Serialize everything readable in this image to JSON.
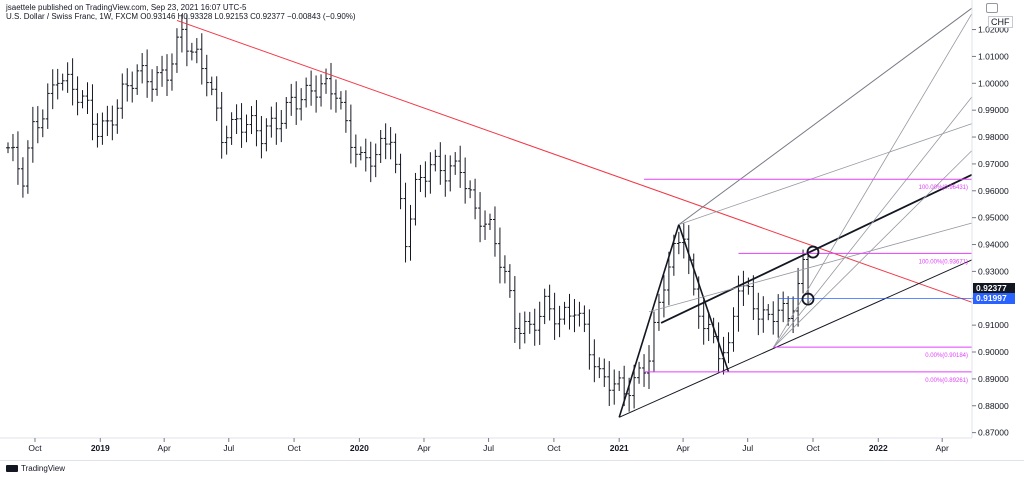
{
  "header": {
    "text": "jsaettele published on TradingView.com, Sep 23, 2021 16:07 UTC-5",
    "symbol": "U.S. Dollar / Swiss Franc, 1W, FXCM",
    "ohlc": "O0.93146  H0.93328  L0.92153  C0.92377  −0.00843 (−0.90%)"
  },
  "axis": {
    "currency": "CHF",
    "settings_icon": "gear-icon"
  },
  "footer": {
    "brand": "TradingView",
    "logo_icon": "tradingview-logo-icon"
  },
  "price_tags": [
    {
      "label": "0.92377",
      "value": 0.92377,
      "color": "#131722"
    },
    {
      "label": "0.91997",
      "value": 0.91997,
      "color": "#2962ff"
    }
  ],
  "chart_data": {
    "type": "bar",
    "subtype": "ohlc-weekly",
    "title": "U.S. Dollar / Swiss Franc, 1W, FXCM",
    "ylim": [
      0.868,
      1.031
    ],
    "yticks": [
      0.87,
      0.88,
      0.89,
      0.9,
      0.91,
      0.92,
      0.93,
      0.94,
      0.95,
      0.96,
      0.97,
      0.98,
      0.99,
      1.0,
      1.01,
      1.02
    ],
    "ytick_labels": [
      "0.87000",
      "0.88000",
      "0.89000",
      "0.90000",
      "0.91000",
      "0.92000",
      "0.93000",
      "0.94000",
      "0.95000",
      "0.96000",
      "0.97000",
      "0.98000",
      "0.99000",
      "1.00000",
      "1.01000",
      "1.02000"
    ],
    "xlim": [
      "2018-08-24",
      "2022-05-13"
    ],
    "xticks": [
      {
        "date": "2018-10-01",
        "label": "Oct"
      },
      {
        "date": "2019-01-01",
        "label": "2019"
      },
      {
        "date": "2019-04-01",
        "label": "Apr"
      },
      {
        "date": "2019-07-01",
        "label": "Jul"
      },
      {
        "date": "2019-10-01",
        "label": "Oct"
      },
      {
        "date": "2020-01-01",
        "label": "2020"
      },
      {
        "date": "2020-04-01",
        "label": "Apr"
      },
      {
        "date": "2020-07-01",
        "label": "Jul"
      },
      {
        "date": "2020-10-01",
        "label": "Oct"
      },
      {
        "date": "2021-01-01",
        "label": "2021"
      },
      {
        "date": "2021-04-01",
        "label": "Apr"
      },
      {
        "date": "2021-07-01",
        "label": "Jul"
      },
      {
        "date": "2021-10-01",
        "label": "Oct"
      },
      {
        "date": "2022-01-01",
        "label": "2022"
      },
      {
        "date": "2022-04-01",
        "label": "Apr"
      }
    ],
    "grid": false,
    "bar_color": "#131722",
    "price_path": [
      [
        "2018-08-24",
        0.976
      ],
      [
        "2018-09-14",
        0.963
      ],
      [
        "2018-09-28",
        0.982
      ],
      [
        "2018-10-12",
        0.99
      ],
      [
        "2018-11-02",
        1.005
      ],
      [
        "2018-11-23",
        0.997
      ],
      [
        "2018-12-07",
        0.992
      ],
      [
        "2018-12-28",
        0.983
      ],
      [
        "2019-01-11",
        0.986
      ],
      [
        "2019-02-01",
        0.997
      ],
      [
        "2019-02-22",
        1.002
      ],
      [
        "2019-03-15",
        1.0
      ],
      [
        "2019-04-05",
        1.006
      ],
      [
        "2019-04-26",
        1.02
      ],
      [
        "2019-05-10",
        1.01
      ],
      [
        "2019-05-31",
        1.002
      ],
      [
        "2019-06-21",
        0.982
      ],
      [
        "2019-07-12",
        0.987
      ],
      [
        "2019-08-02",
        0.983
      ],
      [
        "2019-08-16",
        0.979
      ],
      [
        "2019-09-06",
        0.986
      ],
      [
        "2019-09-27",
        0.995
      ],
      [
        "2019-10-18",
        0.995
      ],
      [
        "2019-11-08",
        0.997
      ],
      [
        "2019-11-29",
        0.998
      ],
      [
        "2019-12-13",
        0.986
      ],
      [
        "2020-01-03",
        0.971
      ],
      [
        "2020-01-24",
        0.971
      ],
      [
        "2020-02-14",
        0.981
      ],
      [
        "2020-03-06",
        0.944
      ],
      [
        "2020-03-20",
        0.962
      ],
      [
        "2020-04-10",
        0.968
      ],
      [
        "2020-05-01",
        0.966
      ],
      [
        "2020-05-22",
        0.971
      ],
      [
        "2020-06-12",
        0.953
      ],
      [
        "2020-07-03",
        0.944
      ],
      [
        "2020-07-24",
        0.928
      ],
      [
        "2020-08-07",
        0.912
      ],
      [
        "2020-08-28",
        0.91
      ],
      [
        "2020-09-18",
        0.916
      ],
      [
        "2020-10-09",
        0.91
      ],
      [
        "2020-10-30",
        0.918
      ],
      [
        "2020-11-13",
        0.91
      ],
      [
        "2020-12-04",
        0.89
      ],
      [
        "2020-12-25",
        0.886
      ],
      [
        "2021-01-08",
        0.885
      ],
      [
        "2021-01-22",
        0.89
      ],
      [
        "2021-02-12",
        0.9
      ],
      [
        "2021-03-05",
        0.925
      ],
      [
        "2021-03-19",
        0.935
      ],
      [
        "2021-04-02",
        0.945
      ],
      [
        "2021-04-16",
        0.922
      ],
      [
        "2021-04-30",
        0.913
      ],
      [
        "2021-05-21",
        0.9
      ],
      [
        "2021-06-04",
        0.898
      ],
      [
        "2021-06-18",
        0.925
      ],
      [
        "2021-07-02",
        0.922
      ],
      [
        "2021-07-16",
        0.917
      ],
      [
        "2021-07-30",
        0.913
      ],
      [
        "2021-08-13",
        0.916
      ],
      [
        "2021-08-27",
        0.91
      ],
      [
        "2021-09-10",
        0.924
      ],
      [
        "2021-09-17",
        0.931
      ],
      [
        "2021-09-24",
        0.924
      ]
    ],
    "trendline": {
      "color": "#f23645",
      "points": [
        [
          "2019-04-19",
          1.0234
        ],
        [
          "2022-05-13",
          0.9185
        ]
      ]
    },
    "pitchfork": {
      "color": "#131722",
      "pivots": [
        [
          "2021-01-01",
          0.8757
        ],
        [
          "2021-03-26",
          0.9474
        ],
        [
          "2021-06-04",
          0.8926
        ]
      ],
      "median_line": [
        [
          "2021-03-01",
          0.9108
        ],
        [
          "2022-05-13",
          0.966
        ]
      ],
      "upper_parallel": [
        [
          "2021-03-26",
          0.9474
        ],
        [
          "2022-05-13",
          1.028
        ]
      ],
      "lower_parallel": [
        [
          "2021-01-01",
          0.8757
        ],
        [
          "2022-05-13",
          0.9343
        ]
      ],
      "inner_lines": [
        [
          [
            "2021-03-26",
            0.9474
          ],
          [
            "2022-05-13",
            0.985
          ]
        ],
        [
          [
            "2021-02-12",
            0.915
          ],
          [
            "2022-05-13",
            0.948
          ]
        ],
        [
          [
            "2021-08-06",
            0.9016
          ],
          [
            "2022-05-13",
            0.995
          ]
        ],
        [
          [
            "2021-08-06",
            0.9016
          ],
          [
            "2022-05-13",
            1.026
          ]
        ],
        [
          [
            "2021-08-06",
            0.9016
          ],
          [
            "2022-05-13",
            0.975
          ]
        ]
      ]
    },
    "fib_lines": [
      {
        "label": "100.00%(0.96431)",
        "value": 0.96431,
        "from": "2021-02-05",
        "to": "2022-05-13"
      },
      {
        "label": "100.00%(0.93671)",
        "value": 0.93671,
        "from": "2021-06-18",
        "to": "2022-05-13"
      },
      {
        "label": "0.00%(0.90184)",
        "value": 0.90184,
        "from": "2021-08-06",
        "to": "2022-05-13"
      },
      {
        "label": "0.00%(0.89261)",
        "value": 0.89261,
        "from": "2021-02-05",
        "to": "2022-05-13"
      }
    ],
    "fib_color": "#e040fb",
    "horizontal_ray": {
      "value": 0.91997,
      "from": "2021-08-13",
      "color": "#2962ff"
    },
    "circles": [
      {
        "date": "2021-10-01",
        "value": 0.9372
      },
      {
        "date": "2021-09-24",
        "value": 0.9197
      }
    ]
  }
}
